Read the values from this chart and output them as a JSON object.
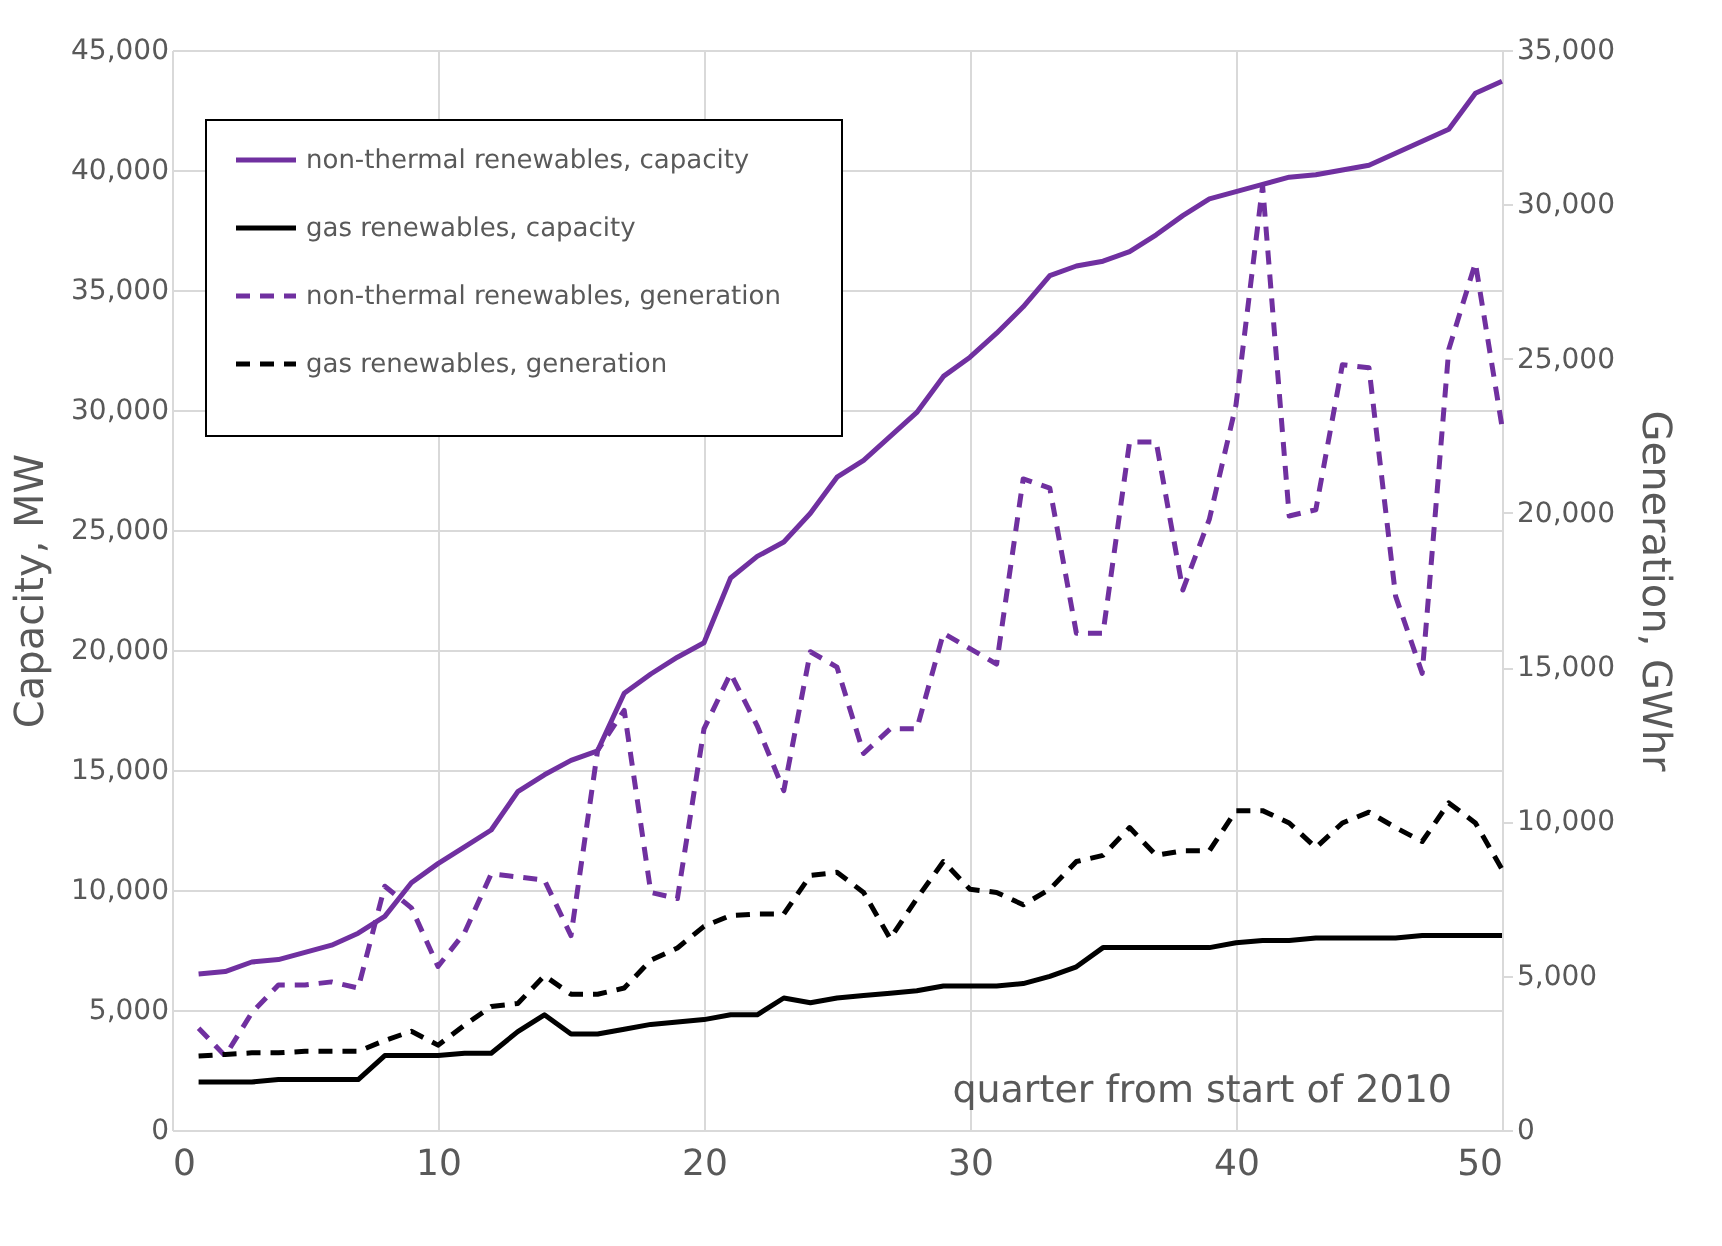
{
  "chart_data": {
    "type": "line",
    "xlabel": "quarter from start of 2010",
    "ylabel": "Capacity, MW",
    "y2label": "Generation, GWhr",
    "x": [
      1,
      2,
      3,
      4,
      5,
      6,
      7,
      8,
      9,
      10,
      11,
      12,
      13,
      14,
      15,
      16,
      17,
      18,
      19,
      20,
      21,
      22,
      23,
      24,
      25,
      26,
      27,
      28,
      29,
      30,
      31,
      32,
      33,
      34,
      35,
      36,
      37,
      38,
      39,
      40,
      41,
      42,
      43,
      44,
      45,
      46,
      47,
      48,
      49,
      50
    ],
    "series": [
      {
        "name": "non-thermal renewables, capacity",
        "color": "#7030a0",
        "line_style": "solid",
        "values": [
          6500,
          6600,
          7000,
          7100,
          7400,
          7700,
          8200,
          8900,
          10300,
          11100,
          11800,
          12500,
          14100,
          14800,
          15400,
          15800,
          18200,
          19000,
          19700,
          20300,
          23000,
          23900,
          24500,
          25700,
          27200,
          27900,
          28900,
          29900,
          31400,
          32200,
          33200,
          34300,
          35600,
          36000,
          36200,
          36600,
          37300,
          38100,
          38800,
          39100,
          39400,
          39700,
          39800,
          40000,
          40200,
          40700,
          41200,
          41700,
          43200,
          43700
        ]
      },
      {
        "name": "gas renewables, capacity",
        "color": "#000000",
        "line_style": "solid",
        "values": [
          2000,
          2000,
          2000,
          2100,
          2100,
          2100,
          2100,
          3100,
          3100,
          3100,
          3200,
          3200,
          4100,
          4800,
          4000,
          4000,
          4200,
          4400,
          4500,
          4600,
          4800,
          4800,
          5500,
          5300,
          5500,
          5600,
          5700,
          5800,
          6000,
          6000,
          6000,
          6100,
          6400,
          6800,
          7600,
          7600,
          7600,
          7600,
          7600,
          7800,
          7900,
          7900,
          8000,
          8000,
          8000,
          8000,
          8100,
          8100,
          8100,
          8100
        ]
      },
      {
        "name": "non-thermal renewables, generation",
        "color": "#7030a0",
        "line_style": "dashed",
        "axis": "y2",
        "values": [
          3300,
          2400,
          3800,
          4700,
          4700,
          4800,
          4600,
          7900,
          7200,
          5300,
          6400,
          8300,
          8200,
          8100,
          6300,
          12300,
          13600,
          7700,
          7500,
          13000,
          14800,
          13100,
          11000,
          15500,
          15000,
          12200,
          13000,
          13000,
          16100,
          15600,
          15100,
          21100,
          20800,
          16100,
          16100,
          22300,
          22300,
          17500,
          19800,
          23500,
          30600,
          19900,
          20100,
          24800,
          24700,
          17300,
          14800,
          25300,
          28100,
          22800
        ]
      },
      {
        "name": "gas renewables, generation",
        "color": "#000000",
        "line_style": "dashed",
        "axis": "y2",
        "values": [
          2400,
          2450,
          2500,
          2500,
          2550,
          2550,
          2550,
          2900,
          3200,
          2750,
          3400,
          4000,
          4100,
          5000,
          4400,
          4400,
          4600,
          5500,
          5900,
          6600,
          6950,
          7000,
          7000,
          8250,
          8350,
          7700,
          6200,
          7500,
          8700,
          7800,
          7700,
          7300,
          7800,
          8700,
          8900,
          9800,
          8900,
          9050,
          9050,
          10350,
          10350,
          9950,
          9150,
          9950,
          10300,
          9800,
          9350,
          10600,
          9950,
          8450
        ]
      }
    ],
    "xlim": [
      0,
      50
    ],
    "xticks": [
      0,
      10,
      20,
      30,
      40,
      50
    ],
    "ylim": [
      0,
      45000
    ],
    "yticks": [
      0,
      {
        "value": 5000,
        "label": "5,000"
      },
      {
        "value": 10000,
        "label": "10,000"
      },
      {
        "value": 15000,
        "label": "15,000"
      },
      {
        "value": 20000,
        "label": "20,000"
      },
      {
        "value": 25000,
        "label": "25,000"
      },
      {
        "value": 30000,
        "label": "30,000"
      },
      {
        "value": 35000,
        "label": "35,000"
      },
      {
        "value": 40000,
        "label": "40,000"
      },
      {
        "value": 45000,
        "label": "45,000"
      }
    ],
    "y2lim": [
      0,
      35000
    ],
    "y2ticks": [
      0,
      {
        "value": 5000,
        "label": "5,000"
      },
      {
        "value": 10000,
        "label": "10,000"
      },
      {
        "value": 15000,
        "label": "15,000"
      },
      {
        "value": 20000,
        "label": "20,000"
      },
      {
        "value": 25000,
        "label": "25,000"
      },
      {
        "value": 30000,
        "label": "30,000"
      },
      {
        "value": 35000,
        "label": "35,000"
      }
    ],
    "grid": true,
    "legend": "top left",
    "marker": "none"
  }
}
